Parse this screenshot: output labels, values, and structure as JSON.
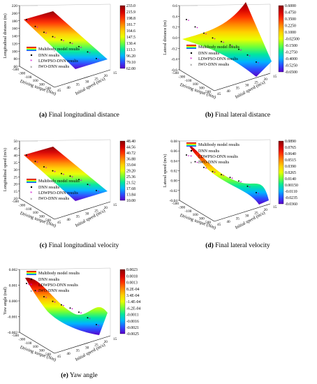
{
  "colors": {
    "colorbar": [
      "#8b0000",
      "#d40000",
      "#ff3300",
      "#ff8800",
      "#ffd000",
      "#e8ff00",
      "#6cff3a",
      "#00e6a0",
      "#00b4ff",
      "#2b4dff",
      "#5b00c8"
    ],
    "dnn": "#000000",
    "ldwpso": "#cc00cc",
    "iwo": "#333333"
  },
  "legend": {
    "surface": "Multibody model results",
    "dnn": "DNN results",
    "ldwpso": "LDWPSO-DNN results",
    "iwo": "IWO-DNN results"
  },
  "panels": [
    {
      "id": "a",
      "caption_letter": "(a)",
      "caption_text": "Final longitudinal distance",
      "zlabel": "Longitudinal distance (m)",
      "xlabel": "Driving torque (Nm)",
      "ylabel": "Initial speed (m/s)",
      "zticks": [
        "220",
        "200",
        "180",
        "160",
        "140",
        "120",
        "100",
        "80",
        "60"
      ],
      "xticks": [
        "-500",
        "-300",
        "-100",
        "100",
        "300",
        "500"
      ],
      "yticks": [
        "15",
        "20",
        "25",
        "30",
        "35",
        "40",
        "45"
      ],
      "cbar": [
        "233.0",
        "215.9",
        "198.8",
        "181.7",
        "164.6",
        "147.5",
        "130.4",
        "113.3",
        "96.20",
        "79.10",
        "62.00"
      ]
    },
    {
      "id": "b",
      "caption_letter": "(b)",
      "caption_text": "Final lateral distance",
      "zlabel": "Lateral distance (m)",
      "xlabel": "Driving torque (Nm)",
      "ylabel": "Initial speed (m/s)",
      "zticks": [
        "0.6",
        "0.4",
        "0.2",
        "0.0",
        "-0.2",
        "-0.4",
        "-0.6"
      ],
      "xticks": [
        "-500",
        "-300",
        "-100",
        "100",
        "300",
        "500"
      ],
      "yticks": [
        "15",
        "20",
        "25",
        "30",
        "35",
        "40",
        "45"
      ],
      "cbar": [
        "0.6000",
        "0.4750",
        "0.3500",
        "0.2250",
        "0.1000",
        "-0.02500",
        "-0.1500",
        "-0.2750",
        "-0.4000",
        "-0.5250",
        "-0.6500"
      ]
    },
    {
      "id": "c",
      "caption_letter": "(c)",
      "caption_text": "Final longitudinal velocity",
      "zlabel": "Longitudinal speed (m/s)",
      "xlabel": "Driving torque (Nm)",
      "ylabel": "Initial speed (m/s)",
      "zticks": [
        "50",
        "45",
        "40",
        "35",
        "30",
        "25",
        "20",
        "15",
        "10"
      ],
      "xticks": [
        "-500",
        "-300",
        "-100",
        "100",
        "300",
        "500"
      ],
      "yticks": [
        "15",
        "20",
        "25",
        "30",
        "35",
        "40",
        "45"
      ],
      "cbar": [
        "48.40",
        "44.56",
        "40.72",
        "36.88",
        "33.04",
        "29.20",
        "25.36",
        "21.52",
        "17.68",
        "13.84",
        "10.00"
      ]
    },
    {
      "id": "d",
      "caption_letter": "(d)",
      "caption_text": "Final lateral velocity",
      "zlabel": "Lateral speed (m/s)",
      "xlabel": "Driving torque (Nm)",
      "ylabel": "Initial speed (m/s)",
      "zticks": [
        "0.08",
        "0.06",
        "0.04",
        "0.02",
        "0.00",
        "-0.02",
        "-0.04"
      ],
      "xticks": [
        "-500",
        "-300",
        "-100",
        "100",
        "300",
        "500"
      ],
      "yticks": [
        "15",
        "20",
        "25",
        "30",
        "35",
        "40",
        "45"
      ],
      "cbar": [
        "0.0890",
        "0.0765",
        "0.0640",
        "0.0515",
        "0.0390",
        "0.0265",
        "0.0140",
        "0.00150",
        "-0.0110",
        "-0.0235",
        "-0.0360"
      ]
    },
    {
      "id": "e",
      "caption_letter": "(e)",
      "caption_text": "Yaw angle",
      "zlabel": "Yaw angle (rad)",
      "xlabel": "Driving torque (Nm)",
      "ylabel": "Initial speed (m/s)",
      "zticks": [
        "0.002",
        "0.001",
        "0.000",
        "-0.001",
        "-0.002"
      ],
      "xticks": [
        "-500",
        "-300",
        "-100",
        "100",
        "300",
        "500"
      ],
      "yticks": [
        "15",
        "20",
        "25",
        "30",
        "35",
        "40",
        "45"
      ],
      "cbar": [
        "0.0023",
        "0.0018",
        "0.0013",
        "8.2E-04",
        "3.4E-04",
        "-1.4E-04",
        "-6.2E-04",
        "-0.0011",
        "-0.0016",
        "-0.0021",
        "-0.0025"
      ]
    }
  ]
}
